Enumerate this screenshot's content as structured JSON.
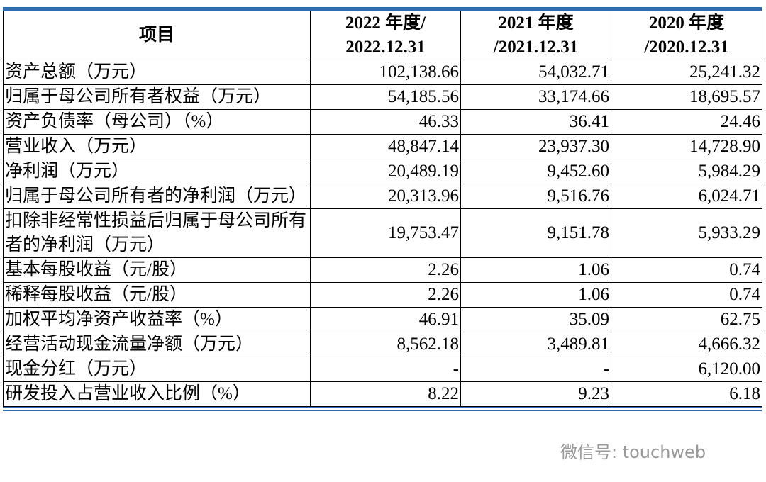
{
  "table": {
    "header": [
      "项目",
      "2022 年度/\n2022.12.31",
      "2021 年度\n/2021.12.31",
      "2020 年度\n/2020.12.31"
    ],
    "rows": [
      [
        "资产总额（万元）",
        "102,138.66",
        "54,032.71",
        "25,241.32"
      ],
      [
        "归属于母公司所有者权益（万元）",
        "54,185.56",
        "33,174.66",
        "18,695.57"
      ],
      [
        "资产负债率（母公司）（%）",
        "46.33",
        "36.41",
        "24.46"
      ],
      [
        "营业收入（万元）",
        "48,847.14",
        "23,937.30",
        "14,728.90"
      ],
      [
        "净利润（万元）",
        "20,489.19",
        "9,452.60",
        "5,984.29"
      ],
      [
        "归属于母公司所有者的净利润（万元）",
        "20,313.96",
        "9,516.76",
        "6,024.71"
      ],
      [
        "扣除非经常性损益后归属于母公司所有者的净利润（万元）",
        "19,753.47",
        "9,151.78",
        "5,933.29"
      ],
      [
        "基本每股收益（元/股）",
        "2.26",
        "1.06",
        "0.74"
      ],
      [
        "稀释每股收益（元/股）",
        "2.26",
        "1.06",
        "0.74"
      ],
      [
        "加权平均净资产收益率（%）",
        "46.91",
        "35.09",
        "62.75"
      ],
      [
        "经营活动现金流量净额（万元）",
        "8,562.18",
        "3,489.81",
        "4,666.32"
      ],
      [
        "现金分红（万元）",
        "-",
        "-",
        "6,120.00"
      ],
      [
        "研发投入占营业收入比例（%）",
        "8.22",
        "9.23",
        "6.18"
      ]
    ]
  },
  "watermark": "微信号: touchweb"
}
